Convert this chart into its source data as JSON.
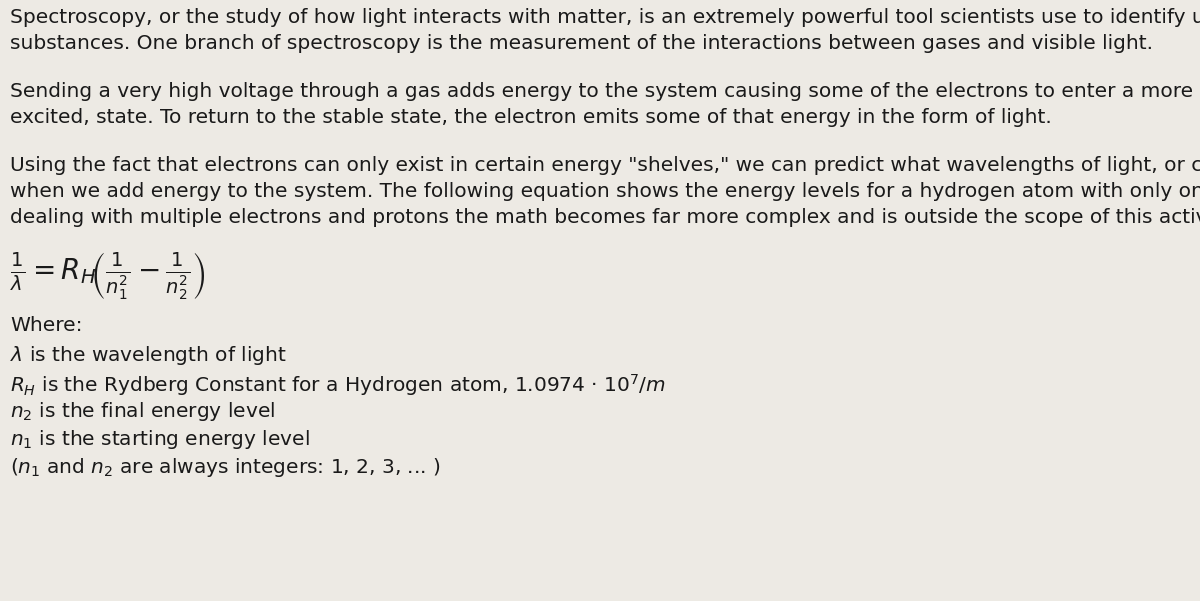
{
  "bg_color": "#edeae4",
  "text_color": "#1a1a1a",
  "figsize": [
    12.0,
    6.01
  ],
  "dpi": 100,
  "para1_line1": "Spectroscopy, or the study of how light interacts with matter, is an extremely powerful tool scientists use to identify unknown",
  "para1_line2": "substances. One branch of spectroscopy is the measurement of the interactions between gases and visible light.",
  "para2_line1": "Sending a very high voltage through a gas adds energy to the system causing some of the electrons to enter a more unstable, or",
  "para2_line2": "excited, state. To return to the stable state, the electron emits some of that energy in the form of light.",
  "para3_line1": "Using the fact that electrons can only exist in certain energy \"shelves,\" we can predict what wavelengths of light, or colors, are emitted",
  "para3_line2": "when we add energy to the system. The following equation shows the energy levels for a hydrogen atom with only one electron (when",
  "para3_line3": "dealing with multiple electrons and protons the math becomes far more complex and is outside the scope of this activity).",
  "where_label": "Where:",
  "def1": " is the wavelength of light",
  "def3": " is the final energy level",
  "def4": " is the starting energy level",
  "def5_mid": " and ",
  "def5_end": " are always integers: 1, 2, 3, ... )",
  "font_size_main": 14.5,
  "font_size_formula": 20
}
